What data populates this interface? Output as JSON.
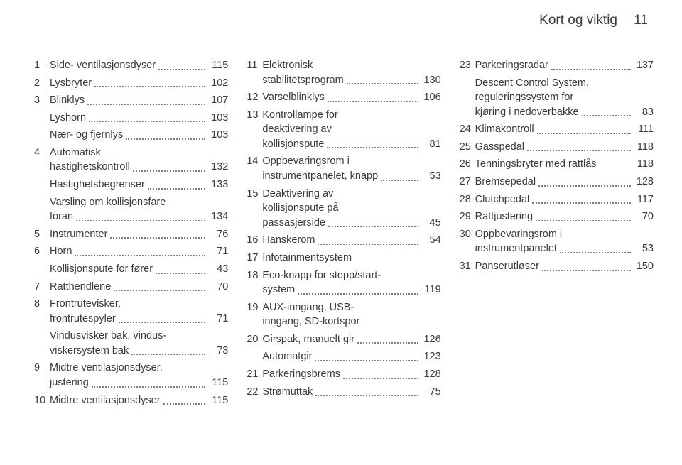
{
  "header": {
    "title": "Kort og viktig",
    "page": "11"
  },
  "columns": [
    [
      {
        "n": "1",
        "label": "Side- ventilasjonsdyser",
        "page": "115"
      },
      {
        "n": "2",
        "label": "Lysbryter",
        "page": "102"
      },
      {
        "n": "3",
        "label": "Blinklys",
        "page": "107"
      },
      {
        "n": "",
        "label": "Lyshorn",
        "page": "103"
      },
      {
        "n": "",
        "label": "Nær- og fjernlys",
        "page": "103"
      },
      {
        "n": "4",
        "pre": "Automatisk",
        "label": "hastighetskontroll",
        "page": "132"
      },
      {
        "n": "",
        "label": "Hastighetsbegrenser",
        "page": "133"
      },
      {
        "n": "",
        "pre": "Varsling om kollisjonsfare",
        "label": "foran",
        "page": "134"
      },
      {
        "n": "5",
        "label": "Instrumenter",
        "page": "76"
      },
      {
        "n": "6",
        "label": "Horn",
        "page": "71"
      },
      {
        "n": "",
        "label": "Kollisjonspute for fører",
        "page": "43"
      },
      {
        "n": "7",
        "label": "Ratthendlene",
        "page": "70"
      },
      {
        "n": "8",
        "pre": "Frontrutevisker,",
        "label": "frontrutespyler",
        "page": "71"
      },
      {
        "n": "",
        "pre": "Vindusvisker bak, vindus-",
        "label": "viskersystem bak",
        "page": "73"
      },
      {
        "n": "9",
        "pre": "Midtre ventilasjonsdyser,",
        "label": "justering",
        "page": "115"
      },
      {
        "n": "10",
        "label": "Midtre ventilasjonsdyser",
        "page": "115"
      }
    ],
    [
      {
        "n": "11",
        "pre": "Elektronisk",
        "label": "stabilitetsprogram",
        "page": "130"
      },
      {
        "n": "12",
        "label": "Varselblinklys",
        "page": "106"
      },
      {
        "n": "13",
        "pre": "Kontrollampe for",
        "pre2": "deaktivering av",
        "label": "kollisjonspute",
        "page": "81"
      },
      {
        "n": "14",
        "pre": "Oppbevaringsrom i",
        "label": "instrumentpanelet, knapp",
        "page": "53"
      },
      {
        "n": "15",
        "pre": "Deaktivering av",
        "pre2": "kollisjonspute på",
        "label": "passasjerside",
        "page": "45"
      },
      {
        "n": "16",
        "label": "Hanskerom",
        "page": "54"
      },
      {
        "n": "17",
        "label": "Infotainmentsystem",
        "page": "",
        "nodots": true
      },
      {
        "n": "18",
        "pre": "Eco-knapp for stopp/start-",
        "label": "system",
        "page": "119"
      },
      {
        "n": "19",
        "pre": "AUX-inngang, USB-",
        "label": "inngang, SD-kortspor",
        "page": "",
        "nodots": true
      },
      {
        "n": "20",
        "label": "Girspak, manuelt gir",
        "page": "126"
      },
      {
        "n": "",
        "label": "Automatgir",
        "page": "123"
      },
      {
        "n": "21",
        "label": "Parkeringsbrems",
        "page": "128"
      },
      {
        "n": "22",
        "label": "Strømuttak",
        "page": "75"
      }
    ],
    [
      {
        "n": "23",
        "label": "Parkeringsradar",
        "page": "137"
      },
      {
        "n": "",
        "pre": "Descent Control System,",
        "pre2": "reguleringssystem for",
        "label": "kjøring i nedoverbakke",
        "page": "83"
      },
      {
        "n": "24",
        "label": "Klimakontroll",
        "page": "111"
      },
      {
        "n": "25",
        "label": "Gasspedal",
        "page": "118"
      },
      {
        "n": "26",
        "label": "Tenningsbryter med rattlås",
        "page": "118",
        "nodots": true
      },
      {
        "n": "27",
        "label": "Bremsepedal",
        "page": "128"
      },
      {
        "n": "28",
        "label": "Clutchpedal",
        "page": "117"
      },
      {
        "n": "29",
        "label": "Rattjustering",
        "page": "70"
      },
      {
        "n": "30",
        "pre": "Oppbevaringsrom i",
        "label": "instrumentpanelet",
        "page": "53"
      },
      {
        "n": "31",
        "label": "Panserutløser",
        "page": "150"
      }
    ]
  ]
}
